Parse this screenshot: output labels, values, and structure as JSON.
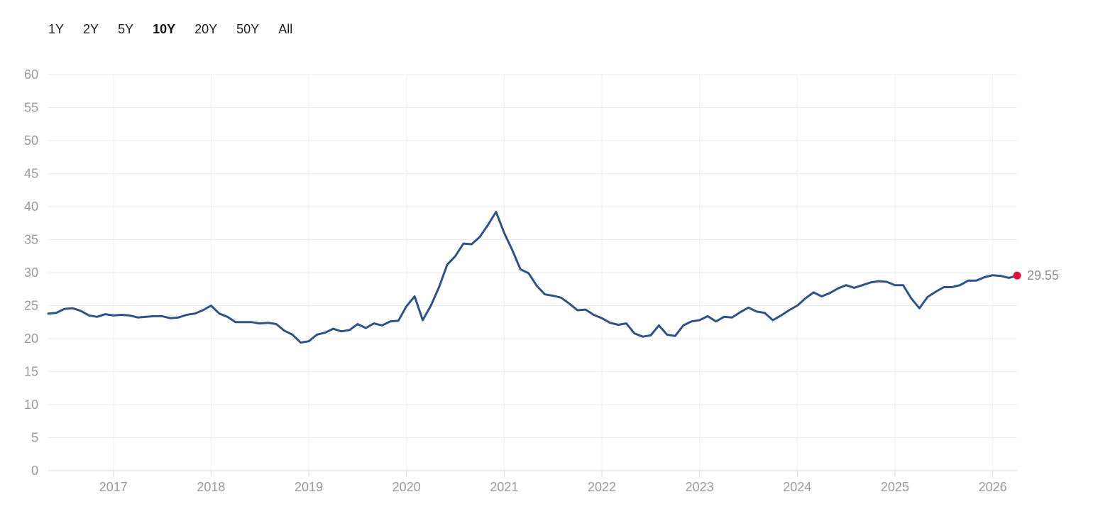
{
  "range_selector": {
    "options": [
      "1Y",
      "2Y",
      "5Y",
      "10Y",
      "20Y",
      "50Y",
      "All"
    ],
    "active": "10Y"
  },
  "chart_data": {
    "type": "line",
    "ylim": [
      0,
      60
    ],
    "yticks": [
      0,
      5,
      10,
      15,
      20,
      25,
      30,
      35,
      40,
      45,
      50,
      55,
      60
    ],
    "xlim": [
      "2016-05",
      "2026-04"
    ],
    "xticks": [
      "2017",
      "2018",
      "2019",
      "2020",
      "2021",
      "2022",
      "2023",
      "2024",
      "2025",
      "2026"
    ],
    "grid": true,
    "line_color": "#2f5388",
    "marker_color": "#e0103a",
    "last_value_label": "29.55",
    "series": [
      {
        "x": [
          "2016-05",
          "2016-06",
          "2016-07",
          "2016-08",
          "2016-09",
          "2016-10",
          "2016-11",
          "2016-12",
          "2017-01",
          "2017-02",
          "2017-03",
          "2017-04",
          "2017-05",
          "2017-06",
          "2017-07",
          "2017-08",
          "2017-09",
          "2017-10",
          "2017-11",
          "2017-12",
          "2018-01",
          "2018-02",
          "2018-03",
          "2018-04",
          "2018-05",
          "2018-06",
          "2018-07",
          "2018-08",
          "2018-09",
          "2018-10",
          "2018-11",
          "2018-12",
          "2019-01",
          "2019-02",
          "2019-03",
          "2019-04",
          "2019-05",
          "2019-06",
          "2019-07",
          "2019-08",
          "2019-09",
          "2019-10",
          "2019-11",
          "2019-12",
          "2020-01",
          "2020-02",
          "2020-03",
          "2020-04",
          "2020-05",
          "2020-06",
          "2020-07",
          "2020-08",
          "2020-09",
          "2020-10",
          "2020-11",
          "2020-12",
          "2021-01",
          "2021-02",
          "2021-03",
          "2021-04",
          "2021-05",
          "2021-06",
          "2021-07",
          "2021-08",
          "2021-09",
          "2021-10",
          "2021-11",
          "2021-12",
          "2022-01",
          "2022-02",
          "2022-03",
          "2022-04",
          "2022-05",
          "2022-06",
          "2022-07",
          "2022-08",
          "2022-09",
          "2022-10",
          "2022-11",
          "2022-12",
          "2023-01",
          "2023-02",
          "2023-03",
          "2023-04",
          "2023-05",
          "2023-06",
          "2023-07",
          "2023-08",
          "2023-09",
          "2023-10",
          "2023-11",
          "2023-12",
          "2024-01",
          "2024-02",
          "2024-03",
          "2024-04",
          "2024-05",
          "2024-06",
          "2024-07",
          "2024-08",
          "2024-09",
          "2024-10",
          "2024-11",
          "2024-12",
          "2025-01",
          "2025-02",
          "2025-03",
          "2025-04",
          "2025-05",
          "2025-06",
          "2025-07",
          "2025-08",
          "2025-09",
          "2025-10",
          "2025-11",
          "2025-12",
          "2026-01",
          "2026-02",
          "2026-03",
          "2026-04"
        ],
        "y": [
          23.8,
          23.9,
          24.5,
          24.6,
          24.2,
          23.5,
          23.3,
          23.7,
          23.5,
          23.6,
          23.5,
          23.2,
          23.3,
          23.4,
          23.4,
          23.1,
          23.2,
          23.6,
          23.8,
          24.3,
          25.0,
          23.8,
          23.3,
          22.5,
          22.5,
          22.5,
          22.3,
          22.4,
          22.2,
          21.2,
          20.6,
          19.4,
          19.6,
          20.6,
          20.9,
          21.5,
          21.1,
          21.3,
          22.2,
          21.6,
          22.3,
          22.0,
          22.6,
          22.7,
          24.9,
          26.4,
          22.8,
          25.0,
          27.8,
          31.2,
          32.5,
          34.4,
          34.3,
          35.4,
          37.2,
          39.2,
          36.0,
          33.4,
          30.5,
          29.9,
          28.0,
          26.7,
          26.5,
          26.2,
          25.3,
          24.3,
          24.4,
          23.6,
          23.1,
          22.4,
          22.1,
          22.3,
          20.8,
          20.3,
          20.5,
          22.0,
          20.6,
          20.4,
          22.0,
          22.6,
          22.8,
          23.4,
          22.6,
          23.3,
          23.2,
          24.0,
          24.7,
          24.1,
          23.9,
          22.8,
          23.5,
          24.3,
          25.0,
          26.1,
          27.0,
          26.4,
          26.9,
          27.6,
          28.1,
          27.7,
          28.1,
          28.5,
          28.7,
          28.6,
          28.1,
          28.1,
          26.1,
          24.6,
          26.3,
          27.1,
          27.8,
          27.8,
          28.1,
          28.8,
          28.8,
          29.3,
          29.6,
          29.5,
          29.2,
          29.55
        ]
      }
    ]
  }
}
